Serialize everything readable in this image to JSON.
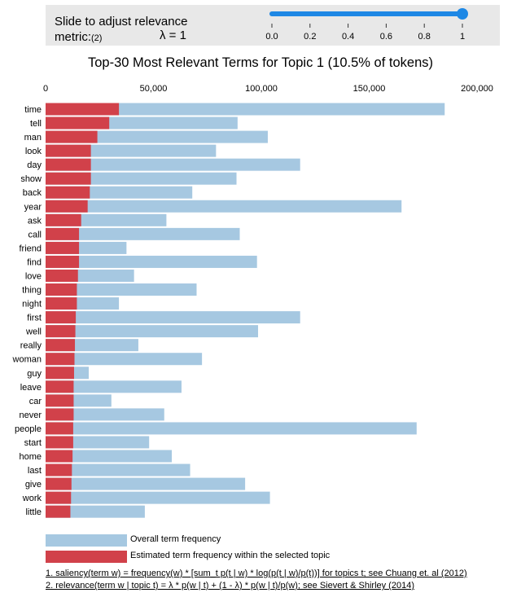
{
  "slider": {
    "label_line1": "Slide to adjust relevance",
    "label_line2": "metric:",
    "label_sup": "(2)",
    "lambda_text": "λ = 1",
    "value": 1,
    "ticks": [
      "0.0",
      "0.2",
      "0.4",
      "0.6",
      "0.8",
      "1"
    ],
    "accent_color": "#1e88e5"
  },
  "legend": {
    "overall": "Overall term frequency",
    "estimated": "Estimated term frequency within the selected topic"
  },
  "footnotes": {
    "saliency": "1. saliency(term w) = frequency(w) * [sum_t p(t | w) * log(p(t | w)/p(t))] for topics t; see Chuang et. al (2012)",
    "relevance": "2. relevance(term w | topic t) = λ * p(w | t) + (1 - λ) * p(w | t)/p(w); see Sievert & Shirley (2014)"
  },
  "colors": {
    "overall": "#a6c8e1",
    "estimated": "#d1414a"
  },
  "chart_data": {
    "type": "bar",
    "orientation": "horizontal",
    "title": "Top-30 Most Relevant Terms for Topic 1 (10.5% of tokens)",
    "xlim": [
      0,
      200000
    ],
    "x_ticks": [
      0,
      50000,
      100000,
      150000,
      200000
    ],
    "x_tick_labels": [
      "0",
      "50,000",
      "100,000",
      "150,000",
      "200,000"
    ],
    "categories": [
      "time",
      "tell",
      "man",
      "look",
      "day",
      "show",
      "back",
      "year",
      "ask",
      "call",
      "friend",
      "find",
      "love",
      "thing",
      "night",
      "first",
      "well",
      "really",
      "woman",
      "guy",
      "leave",
      "car",
      "never",
      "people",
      "start",
      "home",
      "last",
      "give",
      "work",
      "little"
    ],
    "series": [
      {
        "name": "Overall term frequency",
        "values": [
          185000,
          89000,
          103000,
          79000,
          118000,
          88500,
          68000,
          165000,
          56000,
          90000,
          37500,
          98000,
          41000,
          70000,
          34000,
          118000,
          98500,
          43000,
          72500,
          20000,
          63000,
          30500,
          55000,
          172000,
          48000,
          58500,
          67000,
          92500,
          104000,
          46000
        ]
      },
      {
        "name": "Estimated term frequency within the selected topic",
        "values": [
          34000,
          29500,
          24000,
          21000,
          21000,
          21000,
          20500,
          19500,
          16500,
          15500,
          15500,
          15500,
          15000,
          14500,
          14500,
          14000,
          13800,
          13600,
          13400,
          13200,
          13000,
          13000,
          13000,
          12800,
          12800,
          12500,
          12200,
          12000,
          11800,
          11500
        ]
      }
    ]
  }
}
